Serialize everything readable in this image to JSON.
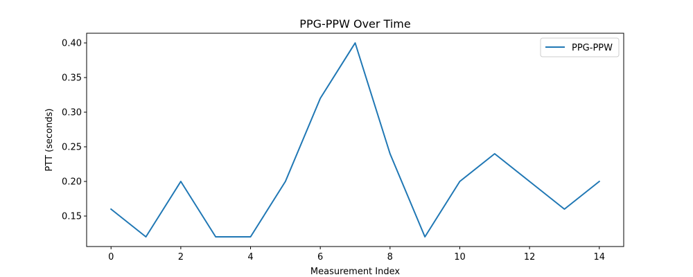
{
  "chart_data": {
    "type": "line",
    "title": "PPG-PPW Over Time",
    "xlabel": "Measurement Index",
    "ylabel": "PTT (seconds)",
    "x": [
      0,
      1,
      2,
      3,
      4,
      5,
      6,
      7,
      8,
      9,
      10,
      11,
      12,
      13,
      14
    ],
    "series": [
      {
        "name": "PPG-PPW",
        "color": "#1f77b4",
        "values": [
          0.16,
          0.12,
          0.2,
          0.12,
          0.12,
          0.2,
          0.32,
          0.4,
          0.24,
          0.12,
          0.2,
          0.24,
          0.2,
          0.16,
          0.2
        ]
      }
    ],
    "xlim": [
      -0.7,
      14.7
    ],
    "ylim": [
      0.106,
      0.414
    ],
    "xticks": [
      "0",
      "2",
      "4",
      "6",
      "8",
      "10",
      "12",
      "14"
    ],
    "yticks": [
      "0.15",
      "0.20",
      "0.25",
      "0.30",
      "0.35",
      "0.40"
    ],
    "grid": false,
    "legend_position": "top-right"
  }
}
